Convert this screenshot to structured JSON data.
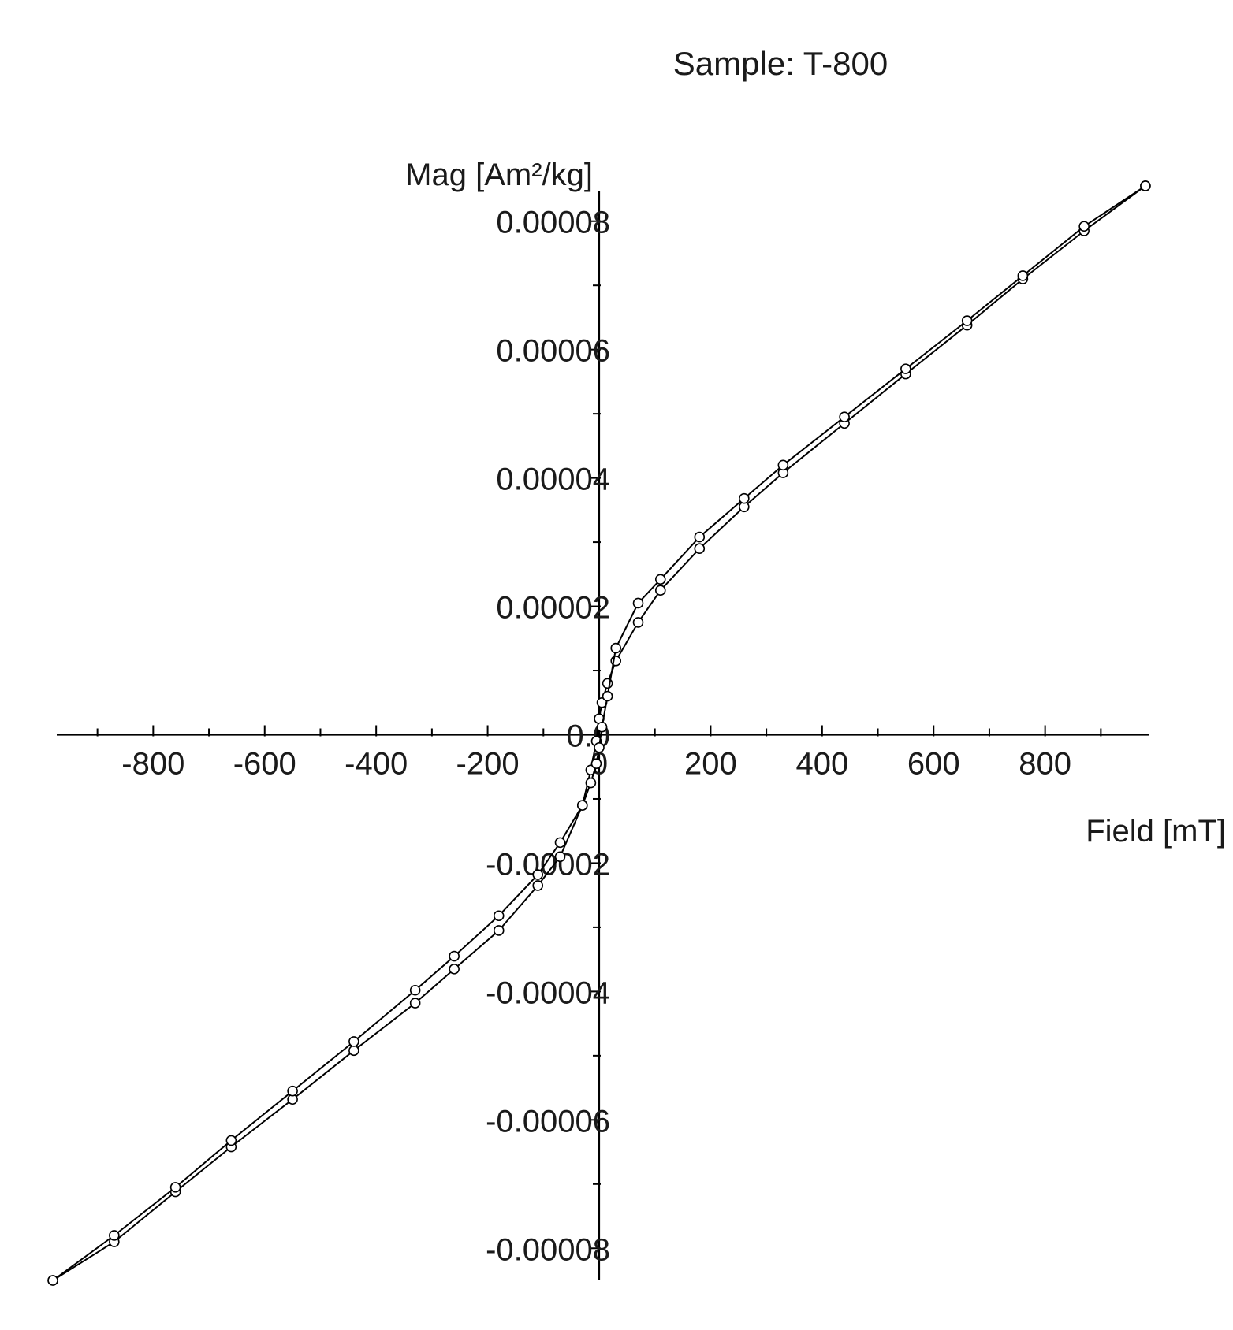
{
  "chart_data": {
    "type": "line",
    "title": "Sample: T-800",
    "xlabel": "Field [mT]",
    "ylabel": "Mag [Am²/kg]",
    "xlim": [
      -990,
      990
    ],
    "ylim": [
      -8.5e-05,
      8.5e-05
    ],
    "x_ticks": [
      -800,
      -600,
      -400,
      -200,
      0,
      200,
      400,
      600,
      800
    ],
    "x_tick_labels": [
      "-800",
      "-600",
      "-400",
      "-200",
      "0",
      "200",
      "400",
      "600",
      "800"
    ],
    "y_ticks": [
      -8e-05,
      -6e-05,
      -4e-05,
      -2e-05,
      0.0,
      2e-05,
      4e-05,
      6e-05,
      8e-05
    ],
    "y_tick_labels": [
      "-0.00008",
      "-0.00006",
      "-0.00004",
      "-0.00002",
      "0.0",
      "0.00002",
      "0.00004",
      "0.00006",
      "0.00008"
    ],
    "grid": false,
    "legend": "none",
    "series": [
      {
        "x": [
          980,
          870,
          760,
          660,
          550,
          440,
          330,
          260,
          180,
          110,
          70,
          30,
          15,
          5,
          0,
          -5,
          -15,
          -30,
          -70,
          -110,
          -180,
          -260,
          -330,
          -440,
          -550,
          -660,
          -760,
          -870,
          -980
        ],
        "y": [
          8.55e-05,
          7.85e-05,
          7.1e-05,
          6.38e-05,
          5.62e-05,
          4.85e-05,
          4.08e-05,
          3.55e-05,
          2.9e-05,
          2.25e-05,
          1.75e-05,
          1.15e-05,
          8e-06,
          5e-06,
          2.5e-06,
          -1e-06,
          -5.5e-06,
          -1.1e-05,
          -1.9e-05,
          -2.35e-05,
          -3.05e-05,
          -3.65e-05,
          -4.18e-05,
          -4.92e-05,
          -5.68e-05,
          -6.42e-05,
          -7.12e-05,
          -7.9e-05,
          -8.5e-05
        ]
      },
      {
        "x": [
          -980,
          -870,
          -760,
          -660,
          -550,
          -440,
          -330,
          -260,
          -180,
          -110,
          -70,
          -30,
          -15,
          -5,
          0,
          5,
          15,
          30,
          70,
          110,
          180,
          260,
          330,
          440,
          550,
          660,
          760,
          870,
          980
        ],
        "y": [
          -8.5e-05,
          -7.8e-05,
          -7.05e-05,
          -6.32e-05,
          -5.55e-05,
          -4.78e-05,
          -3.98e-05,
          -3.45e-05,
          -2.82e-05,
          -2.18e-05,
          -1.68e-05,
          -1.1e-05,
          -7.5e-06,
          -4.5e-06,
          -2e-06,
          1.2e-06,
          6e-06,
          1.35e-05,
          2.05e-05,
          2.42e-05,
          3.08e-05,
          3.68e-05,
          4.2e-05,
          4.95e-05,
          5.7e-05,
          6.45e-05,
          7.15e-05,
          7.92e-05,
          8.55e-05
        ]
      }
    ]
  }
}
